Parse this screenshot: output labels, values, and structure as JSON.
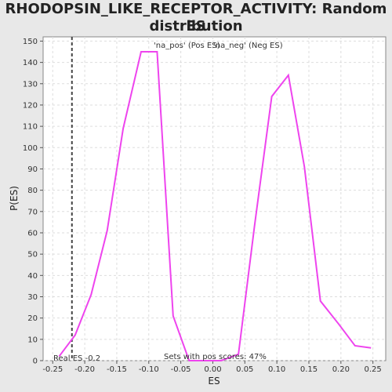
{
  "title_line1": "RHODOPSIN_LIKE_RECEPTOR_ACTIVITY: Random ES",
  "title_line2": "distribution",
  "chart_data": {
    "type": "line",
    "xlabel": "ES",
    "ylabel": "P(ES)",
    "xlim": [
      -0.265,
      0.27
    ],
    "ylim": [
      0,
      152
    ],
    "xticks": [
      -0.25,
      -0.2,
      -0.15,
      -0.1,
      -0.05,
      0.0,
      0.05,
      0.1,
      0.15,
      0.2,
      0.25
    ],
    "xtick_labels": [
      "-0.25",
      "-0.20",
      "-0.15",
      "-0.10",
      "-0.05",
      "0.00",
      "0.05",
      "0.10",
      "0.15",
      "0.20",
      "0.25"
    ],
    "yticks": [
      0,
      10,
      20,
      30,
      40,
      50,
      60,
      70,
      80,
      90,
      100,
      110,
      120,
      130,
      140,
      150
    ],
    "grid": true,
    "series": [
      {
        "color": "#ee44ee",
        "x": [
          -0.24,
          -0.215,
          -0.19,
          -0.165,
          -0.14,
          -0.112,
          -0.087,
          -0.062,
          -0.037,
          -0.012,
          0.013,
          0.04,
          0.065,
          0.092,
          0.118,
          0.143,
          0.168,
          0.197,
          0.222,
          0.247
        ],
        "y": [
          2,
          12,
          31,
          61,
          109,
          145,
          145,
          21,
          0,
          0,
          0,
          3,
          63,
          124,
          134,
          91,
          28,
          17,
          7,
          6
        ]
      }
    ],
    "real_es": -0.22,
    "legend": [
      {
        "label": "'na_pos' (Pos ES)",
        "color": "#dd4444"
      },
      {
        "label": "'na_neg' (Neg ES)",
        "color": "#4444cc"
      }
    ],
    "annotations": {
      "real_es_text": "Real ES -0.2",
      "pos_scores_text": "Sets with pos scores: 47%"
    }
  }
}
